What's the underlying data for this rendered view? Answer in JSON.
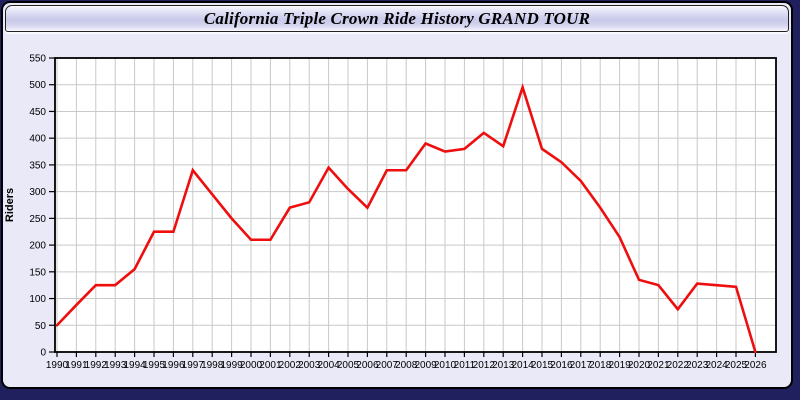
{
  "window": {
    "title": "California Triple Crown Ride History GRAND TOUR"
  },
  "chart_data": {
    "type": "line",
    "title": "California Triple Crown Ride History GRAND TOUR",
    "xlabel": "",
    "ylabel": "Riders",
    "x": [
      1990,
      1991,
      1992,
      1993,
      1994,
      1995,
      1996,
      1997,
      1998,
      1999,
      2000,
      2001,
      2002,
      2003,
      2004,
      2005,
      2006,
      2007,
      2008,
      2009,
      2010,
      2011,
      2012,
      2013,
      2014,
      2015,
      2016,
      2017,
      2018,
      2019,
      2020,
      2021,
      2022,
      2023,
      2024,
      2025,
      2026
    ],
    "series": [
      {
        "name": "Riders",
        "color": "#ee0e0e",
        "values": [
          50,
          88,
          125,
          125,
          155,
          225,
          225,
          340,
          295,
          250,
          210,
          210,
          270,
          280,
          345,
          305,
          270,
          340,
          340,
          390,
          375,
          380,
          410,
          385,
          495,
          380,
          355,
          320,
          270,
          215,
          135,
          125,
          80,
          128,
          125,
          122,
          0
        ]
      }
    ],
    "ylim": [
      0,
      550
    ],
    "ytick_step": 50,
    "grid": true,
    "legend_position": "none",
    "plot_bg": "#ffffff",
    "grid_color": "#c9c9c9",
    "axis_color": "#000000"
  }
}
